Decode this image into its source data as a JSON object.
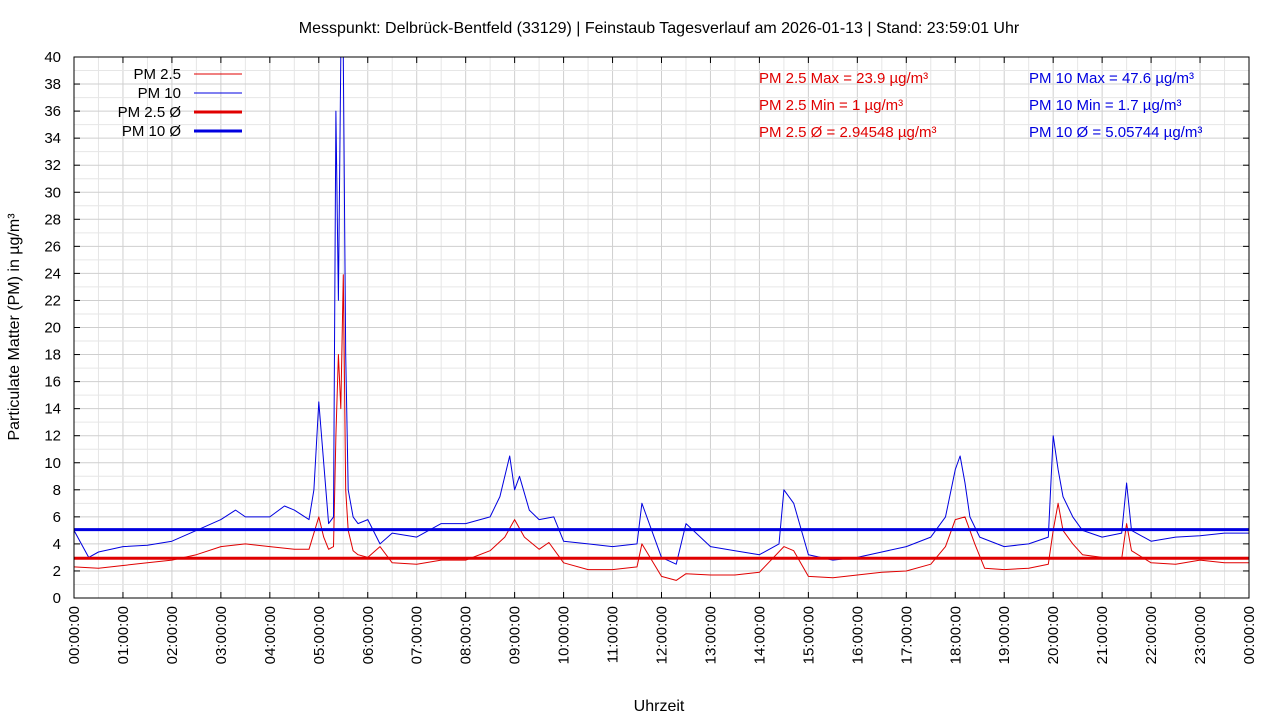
{
  "chart_data": {
    "type": "line",
    "title": "Messpunkt: Delbrück-Bentfeld (33129) | Feinstaub Tagesverlauf am 2026-01-13 | Stand: 23:59:01 Uhr",
    "xlabel": "Uhrzeit",
    "ylabel": "Particulate Matter (PM) in µg/m³",
    "ylim": [
      0,
      40
    ],
    "xlim_hours": [
      0,
      24
    ],
    "y_ticks": [
      0,
      2,
      4,
      6,
      8,
      10,
      12,
      14,
      16,
      18,
      20,
      22,
      24,
      26,
      28,
      30,
      32,
      34,
      36,
      38,
      40
    ],
    "x_ticks": [
      "00:00:00",
      "01:00:00",
      "02:00:00",
      "03:00:00",
      "04:00:00",
      "05:00:00",
      "06:00:00",
      "07:00:00",
      "08:00:00",
      "09:00:00",
      "10:00:00",
      "11:00:00",
      "12:00:00",
      "13:00:00",
      "14:00:00",
      "15:00:00",
      "16:00:00",
      "17:00:00",
      "18:00:00",
      "19:00:00",
      "20:00:00",
      "21:00:00",
      "22:00:00",
      "23:00:00",
      "00:00:00"
    ],
    "grid": true,
    "legend_position": "top-left",
    "series": [
      {
        "name": "PM 2.5",
        "color": "#e00000",
        "x": [
          0,
          0.5,
          1,
          1.5,
          2,
          2.5,
          3,
          3.5,
          4,
          4.5,
          4.8,
          5,
          5.1,
          5.2,
          5.3,
          5.35,
          5.4,
          5.45,
          5.5,
          5.55,
          5.6,
          5.7,
          5.8,
          6,
          6.25,
          6.5,
          7,
          7.5,
          8,
          8.5,
          8.8,
          9,
          9.2,
          9.5,
          9.7,
          10,
          10.5,
          11,
          11.5,
          11.6,
          12,
          12.3,
          12.5,
          13,
          13.5,
          14,
          14.5,
          14.7,
          15,
          15.5,
          16,
          16.5,
          17,
          17.5,
          17.8,
          18,
          18.2,
          18.4,
          18.6,
          19,
          19.5,
          19.9,
          20,
          20.1,
          20.2,
          20.4,
          20.6,
          21,
          21.4,
          21.5,
          21.6,
          22,
          22.5,
          23,
          23.5,
          24
        ],
        "y": [
          2.3,
          2.2,
          2.4,
          2.6,
          2.8,
          3.2,
          3.8,
          4.0,
          3.8,
          3.6,
          3.6,
          6.0,
          4.5,
          3.6,
          3.8,
          12.0,
          18.0,
          14.0,
          23.9,
          8.0,
          5.0,
          3.5,
          3.2,
          3.0,
          3.8,
          2.6,
          2.5,
          2.8,
          2.8,
          3.5,
          4.5,
          5.8,
          4.5,
          3.6,
          4.1,
          2.6,
          2.1,
          2.1,
          2.3,
          4.0,
          1.6,
          1.3,
          1.8,
          1.7,
          1.7,
          1.9,
          3.8,
          3.5,
          1.6,
          1.5,
          1.7,
          1.9,
          2.0,
          2.5,
          3.8,
          5.8,
          6.0,
          4.0,
          2.2,
          2.1,
          2.2,
          2.5,
          5.0,
          7.0,
          5.0,
          4.0,
          3.2,
          3.0,
          2.9,
          5.5,
          3.5,
          2.6,
          2.5,
          2.8,
          2.6,
          2.6
        ]
      },
      {
        "name": "PM 10",
        "color": "#0000e0",
        "x": [
          0,
          0.3,
          0.5,
          1,
          1.5,
          2,
          2.5,
          3,
          3.3,
          3.5,
          4,
          4.3,
          4.5,
          4.8,
          4.9,
          5,
          5.1,
          5.2,
          5.3,
          5.35,
          5.4,
          5.45,
          5.5,
          5.55,
          5.6,
          5.7,
          5.8,
          6,
          6.25,
          6.5,
          7,
          7.5,
          8,
          8.5,
          8.7,
          8.9,
          9,
          9.1,
          9.3,
          9.5,
          9.8,
          10,
          10.5,
          11,
          11.5,
          11.6,
          12,
          12.3,
          12.5,
          13,
          13.5,
          14,
          14.4,
          14.5,
          14.7,
          15,
          15.5,
          16,
          16.5,
          17,
          17.5,
          17.8,
          18,
          18.1,
          18.2,
          18.3,
          18.5,
          19,
          19.5,
          19.9,
          20,
          20.1,
          20.2,
          20.4,
          20.6,
          21,
          21.4,
          21.5,
          21.6,
          22,
          22.5,
          23,
          23.5,
          24
        ],
        "y": [
          5.0,
          3.0,
          3.4,
          3.8,
          3.9,
          4.2,
          5.0,
          5.8,
          6.5,
          6.0,
          6.0,
          6.8,
          6.5,
          5.8,
          8.0,
          14.5,
          10.0,
          5.5,
          6.0,
          36.0,
          22.0,
          40.0,
          47.6,
          18.0,
          8.0,
          6.0,
          5.5,
          5.8,
          4.0,
          4.8,
          4.5,
          5.5,
          5.5,
          6.0,
          7.5,
          10.5,
          8.0,
          9.0,
          6.5,
          5.8,
          6.0,
          4.2,
          4.0,
          3.8,
          4.0,
          7.0,
          3.0,
          2.5,
          5.5,
          3.8,
          3.5,
          3.2,
          4.0,
          8.0,
          7.0,
          3.2,
          2.8,
          3.0,
          3.4,
          3.8,
          4.5,
          6.0,
          9.5,
          10.5,
          8.5,
          6.0,
          4.5,
          3.8,
          4.0,
          4.5,
          12.0,
          9.5,
          7.5,
          6.0,
          5.0,
          4.5,
          4.8,
          8.5,
          5.0,
          4.2,
          4.5,
          4.6,
          4.8,
          4.8
        ]
      },
      {
        "name": "PM 2.5 Ø",
        "color": "#e00000",
        "x": [
          0,
          24
        ],
        "y": [
          2.94548,
          2.94548
        ]
      },
      {
        "name": "PM 10 Ø",
        "color": "#0000e0",
        "x": [
          0,
          24
        ],
        "y": [
          5.05744,
          5.05744
        ]
      }
    ],
    "annotations": {
      "pm25": [
        "PM 2.5 Max = 23.9 µg/m³",
        "PM 2.5 Min = 1 µg/m³",
        "PM 2.5 Ø = 2.94548 µg/m³"
      ],
      "pm10": [
        "PM 10 Max = 47.6 µg/m³",
        "PM 10 Min = 1.7 µg/m³",
        "PM 10 Ø = 5.05744 µg/m³"
      ]
    },
    "colors": {
      "pm25": "#e00000",
      "pm10": "#0000e0"
    }
  }
}
